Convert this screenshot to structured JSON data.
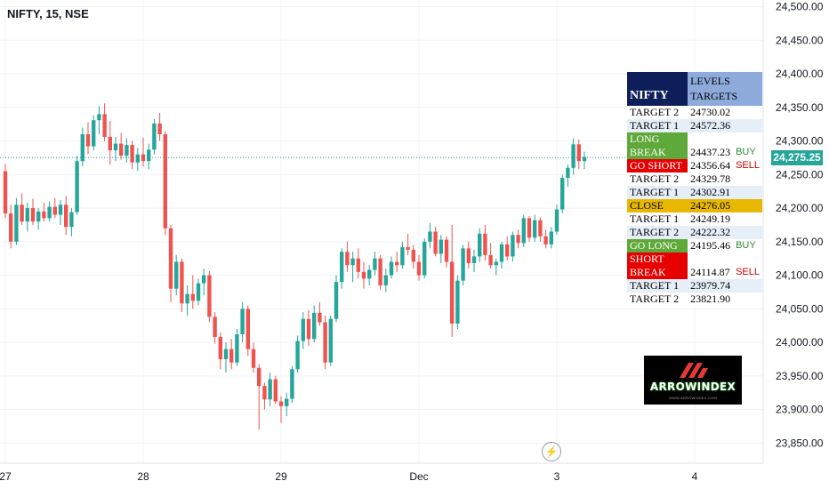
{
  "header": {
    "symbol_title": "NIFTY, 15, NSE"
  },
  "current_price": {
    "label": "24,275.25",
    "value": 24275.25,
    "color": "#26a69a"
  },
  "chart_data": {
    "type": "candlestick",
    "title": "NIFTY, 15, NSE",
    "ylim": [
      23820,
      24510
    ],
    "y_ticks": [
      {
        "value": 23850,
        "label": "23,850.00"
      },
      {
        "value": 23900,
        "label": "23,900.00"
      },
      {
        "value": 23950,
        "label": "23,950.00"
      },
      {
        "value": 24000,
        "label": "24,000.00"
      },
      {
        "value": 24050,
        "label": "24,050.00"
      },
      {
        "value": 24100,
        "label": "24,100.00"
      },
      {
        "value": 24150,
        "label": "24,150.00"
      },
      {
        "value": 24200,
        "label": "24,200.00"
      },
      {
        "value": 24250,
        "label": "24,250.00"
      },
      {
        "value": 24300,
        "label": "24,300.00"
      },
      {
        "value": 24350,
        "label": "24,350.00"
      },
      {
        "value": 24400,
        "label": "24,400.00"
      },
      {
        "value": 24450,
        "label": "24,450.00"
      },
      {
        "value": 24500,
        "label": "24,500.00"
      }
    ],
    "x_ticks": [
      {
        "index": 0,
        "label": "27"
      },
      {
        "index": 25,
        "label": "28"
      },
      {
        "index": 50,
        "label": "29"
      },
      {
        "index": 75,
        "label": "Dec"
      },
      {
        "index": 100,
        "label": "3"
      },
      {
        "index": 125,
        "label": "4"
      }
    ],
    "candles": [
      [
        24255,
        24266,
        24185,
        24192
      ],
      [
        24192,
        24205,
        24140,
        24150
      ],
      [
        24150,
        24215,
        24145,
        24205
      ],
      [
        24205,
        24222,
        24175,
        24180
      ],
      [
        24180,
        24208,
        24165,
        24200
      ],
      [
        24200,
        24214,
        24175,
        24180
      ],
      [
        24180,
        24200,
        24168,
        24195
      ],
      [
        24195,
        24208,
        24180,
        24185
      ],
      [
        24185,
        24210,
        24180,
        24202
      ],
      [
        24202,
        24215,
        24185,
        24190
      ],
      [
        24190,
        24212,
        24175,
        24205
      ],
      [
        24205,
        24218,
        24160,
        24172
      ],
      [
        24172,
        24200,
        24158,
        24194
      ],
      [
        24194,
        24278,
        24190,
        24270
      ],
      [
        24270,
        24320,
        24262,
        24310
      ],
      [
        24310,
        24328,
        24280,
        24292
      ],
      [
        24292,
        24338,
        24286,
        24331
      ],
      [
        24331,
        24352,
        24310,
        24340
      ],
      [
        24340,
        24356,
        24300,
        24306
      ],
      [
        24306,
        24330,
        24265,
        24286
      ],
      [
        24286,
        24306,
        24270,
        24296
      ],
      [
        24296,
        24312,
        24272,
        24278
      ],
      [
        24278,
        24304,
        24268,
        24294
      ],
      [
        24294,
        24300,
        24258,
        24268
      ],
      [
        24268,
        24290,
        24255,
        24280
      ],
      [
        24280,
        24305,
        24262,
        24270
      ],
      [
        24270,
        24296,
        24258,
        24287
      ],
      [
        24287,
        24333,
        24280,
        24326
      ],
      [
        24326,
        24342,
        24300,
        24310
      ],
      [
        24310,
        24314,
        24160,
        24170
      ],
      [
        24170,
        24175,
        24060,
        24080
      ],
      [
        24080,
        24130,
        24070,
        24120
      ],
      [
        24120,
        24125,
        24045,
        24058
      ],
      [
        24058,
        24085,
        24040,
        24072
      ],
      [
        24072,
        24100,
        24050,
        24062
      ],
      [
        24062,
        24095,
        24055,
        24088
      ],
      [
        24088,
        24110,
        24070,
        24100
      ],
      [
        24100,
        24106,
        24030,
        24038
      ],
      [
        24038,
        24045,
        23998,
        24008
      ],
      [
        24008,
        24015,
        23960,
        23975
      ],
      [
        23975,
        24000,
        23955,
        23990
      ],
      [
        23990,
        24005,
        23960,
        23970
      ],
      [
        23970,
        24020,
        23965,
        24012
      ],
      [
        24012,
        24060,
        24000,
        24050
      ],
      [
        24050,
        24055,
        23980,
        23990
      ],
      [
        23990,
        24000,
        23955,
        23962
      ],
      [
        23962,
        23968,
        23870,
        23935
      ],
      [
        23935,
        23940,
        23900,
        23915
      ],
      [
        23915,
        23955,
        23905,
        23945
      ],
      [
        23945,
        23950,
        23908,
        23912
      ],
      [
        23912,
        23920,
        23880,
        23905
      ],
      [
        23905,
        23925,
        23890,
        23916
      ],
      [
        23916,
        23965,
        23910,
        23960
      ],
      [
        23960,
        24010,
        23955,
        24002
      ],
      [
        24002,
        24045,
        23990,
        24035
      ],
      [
        24035,
        24048,
        23995,
        24005
      ],
      [
        24005,
        24055,
        24000,
        24044
      ],
      [
        24044,
        24060,
        24025,
        24030
      ],
      [
        24030,
        24040,
        23960,
        23970
      ],
      [
        23970,
        24040,
        23965,
        24035
      ],
      [
        24035,
        24100,
        24030,
        24090
      ],
      [
        24090,
        24140,
        24080,
        24135
      ],
      [
        24135,
        24150,
        24105,
        24115
      ],
      [
        24115,
        24135,
        24090,
        24125
      ],
      [
        24125,
        24140,
        24095,
        24105
      ],
      [
        24105,
        24120,
        24080,
        24095
      ],
      [
        24095,
        24115,
        24085,
        24108
      ],
      [
        24108,
        24135,
        24100,
        24125
      ],
      [
        24125,
        24130,
        24078,
        24085
      ],
      [
        24085,
        24110,
        24075,
        24100
      ],
      [
        24100,
        24128,
        24095,
        24120
      ],
      [
        24120,
        24135,
        24105,
        24115
      ],
      [
        24115,
        24150,
        24110,
        24142
      ],
      [
        24142,
        24162,
        24130,
        24138
      ],
      [
        24138,
        24145,
        24110,
        24120
      ],
      [
        24120,
        24130,
        24092,
        24100
      ],
      [
        24100,
        24155,
        24095,
        24150
      ],
      [
        24150,
        24178,
        24140,
        24165
      ],
      [
        24165,
        24172,
        24128,
        24132
      ],
      [
        24132,
        24160,
        24118,
        24153
      ],
      [
        24153,
        24158,
        24112,
        24120
      ],
      [
        24120,
        24175,
        24008,
        24028
      ],
      [
        24028,
        24100,
        24020,
        24092
      ],
      [
        24092,
        24145,
        24085,
        24140
      ],
      [
        24140,
        24150,
        24110,
        24118
      ],
      [
        24118,
        24138,
        24105,
        24128
      ],
      [
        24128,
        24170,
        24120,
        24162
      ],
      [
        24162,
        24175,
        24122,
        24130
      ],
      [
        24130,
        24148,
        24110,
        24115
      ],
      [
        24115,
        24125,
        24100,
        24120
      ],
      [
        24120,
        24150,
        24110,
        24146
      ],
      [
        24146,
        24158,
        24122,
        24128
      ],
      [
        24128,
        24165,
        24120,
        24160
      ],
      [
        24160,
        24168,
        24140,
        24148
      ],
      [
        24148,
        24190,
        24142,
        24185
      ],
      [
        24185,
        24188,
        24150,
        24156
      ],
      [
        24156,
        24190,
        24150,
        24182
      ],
      [
        24182,
        24186,
        24150,
        24158
      ],
      [
        24158,
        24168,
        24140,
        24146
      ],
      [
        24146,
        24172,
        24140,
        24165
      ],
      [
        24165,
        24205,
        24160,
        24198
      ],
      [
        24198,
        24250,
        24192,
        24245
      ],
      [
        24245,
        24265,
        24232,
        24260
      ],
      [
        24260,
        24304,
        24250,
        24295
      ],
      [
        24295,
        24302,
        24258,
        24270
      ],
      [
        24270,
        24284,
        24258,
        24276
      ]
    ]
  },
  "levels_table": {
    "header_left": "NIFTY",
    "header_right_1": "LEVELS",
    "header_right_2": "TARGETS",
    "rows": [
      {
        "label": "TARGET 2",
        "value": "24730.02",
        "signal": "",
        "style": "pair"
      },
      {
        "label": "TARGET 1",
        "value": "24572.36",
        "signal": "",
        "style": "alt"
      },
      {
        "label": "LONG",
        "label2": "BREAK",
        "value": "24437.23",
        "signal": "BUY",
        "style": "long-break"
      },
      {
        "label": "GO SHORT",
        "value": "24356.64",
        "signal": "SELL",
        "style": "go-short"
      },
      {
        "label": "TARGET 2",
        "value": "24329.78",
        "signal": "",
        "style": "pair"
      },
      {
        "label": "TARGET 1",
        "value": "24302.91",
        "signal": "",
        "style": "alt"
      },
      {
        "label": "CLOSE",
        "value": "24276.05",
        "signal": "",
        "style": "close"
      },
      {
        "label": "TARGET 1",
        "value": "24249.19",
        "signal": "",
        "style": "pair"
      },
      {
        "label": "TARGET 2",
        "value": "24222.32",
        "signal": "",
        "style": "alt"
      },
      {
        "label": "GO LONG",
        "value": "24195.46",
        "signal": "BUY",
        "style": "go-long"
      },
      {
        "label": "SHORT",
        "label2": "BREAK",
        "value": "24114.87",
        "signal": "SELL",
        "style": "short-break"
      },
      {
        "label": "TARGET 1",
        "value": "23979.74",
        "signal": "",
        "style": "alt"
      },
      {
        "label": "TARGET 2",
        "value": "23821.90",
        "signal": "",
        "style": "pair"
      }
    ]
  },
  "logo": {
    "text_part1": "ARROW",
    "text_part2": "INDEX",
    "tagline": "WWW.ARROWINDEX.COM"
  },
  "colors": {
    "up": "#26a69a",
    "down": "#ef5350",
    "long": "#5fa83a",
    "short": "#e60000",
    "close": "#e8b800"
  },
  "icons": {
    "flash": "lightning-icon"
  }
}
